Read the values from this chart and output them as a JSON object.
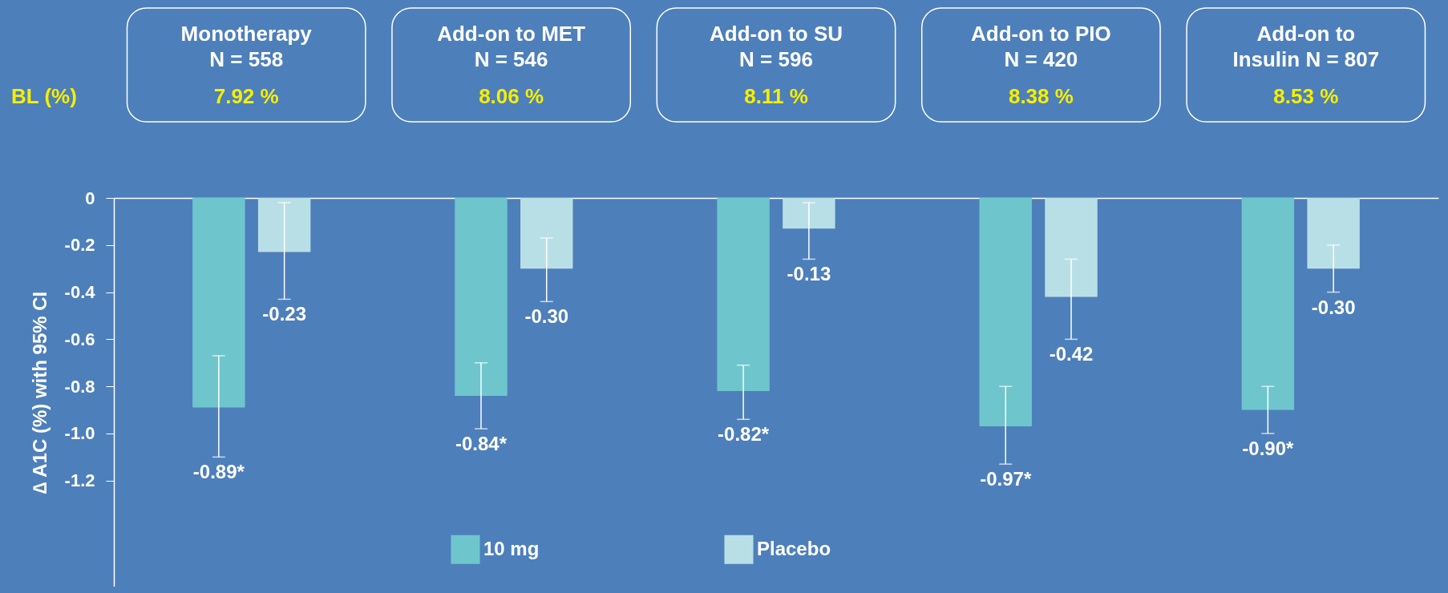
{
  "chart_data": {
    "type": "bar",
    "ylabel": "∆ A1C (%) with 95% CI",
    "categories": [
      "Monotherapy\nN = 558",
      "Add-on to MET\nN = 546",
      "Add-on to SU\nN = 596",
      "Add-on to PIO\nN = 420",
      "Add-on to\nInsulin N = 807"
    ],
    "series": [
      {
        "name": "10 mg",
        "color": "#6ec6cc",
        "values": [
          -0.89,
          -0.84,
          -0.82,
          -0.97,
          -0.9
        ],
        "errors": [
          [
            -1.1,
            -0.67
          ],
          [
            -0.98,
            -0.7
          ],
          [
            -0.94,
            -0.71
          ],
          [
            -1.13,
            -0.8
          ],
          [
            -1.0,
            -0.8
          ]
        ],
        "value_labels": [
          "-0.89*",
          "-0.84*",
          "-0.82*",
          "-0.97*",
          "-0.90*"
        ]
      },
      {
        "name": "Placebo",
        "color": "#b9dfe6",
        "values": [
          -0.23,
          -0.3,
          -0.13,
          -0.42,
          -0.3
        ],
        "errors": [
          [
            -0.43,
            -0.02
          ],
          [
            -0.44,
            -0.17
          ],
          [
            -0.26,
            -0.02
          ],
          [
            -0.6,
            -0.26
          ],
          [
            -0.4,
            -0.2
          ]
        ],
        "value_labels": [
          "-0.23",
          "-0.30",
          "-0.13",
          "-0.42",
          "-0.30"
        ]
      }
    ],
    "ylim": [
      -1.65,
      0
    ],
    "yticks": [
      0,
      -0.2,
      -0.4,
      -0.6,
      -0.8,
      {
        "value": -1,
        "label": "-1.0"
      },
      -1.2
    ],
    "annotations": [
      "BL (%)",
      "7.92 %",
      "8.06 %",
      "8.11 %",
      "8.38 %",
      "8.53 %"
    ],
    "grid": false,
    "legend": "bottom"
  }
}
